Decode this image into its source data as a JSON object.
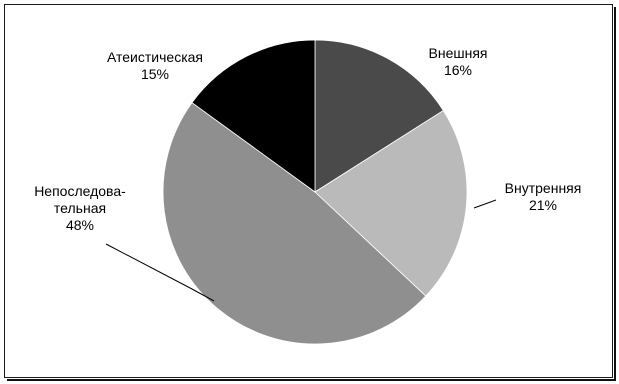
{
  "chart_data": {
    "type": "pie",
    "title": "",
    "slices": [
      {
        "name": "Внешняя",
        "label_lines": [
          "Внешняя"
        ],
        "value": 16,
        "value_label": "16%",
        "color": "#4a4a4a"
      },
      {
        "name": "Внутренняя",
        "label_lines": [
          "Внутренняя"
        ],
        "value": 21,
        "value_label": "21%",
        "color": "#bababa"
      },
      {
        "name": "Непоследовательная",
        "label_lines": [
          "Непоследова-",
          "тельная"
        ],
        "value": 48,
        "value_label": "48%",
        "color": "#8f8f8f"
      },
      {
        "name": "Атеистическая",
        "label_lines": [
          "Атеистическая"
        ],
        "value": 15,
        "value_label": "15%",
        "color": "#000000"
      }
    ]
  }
}
